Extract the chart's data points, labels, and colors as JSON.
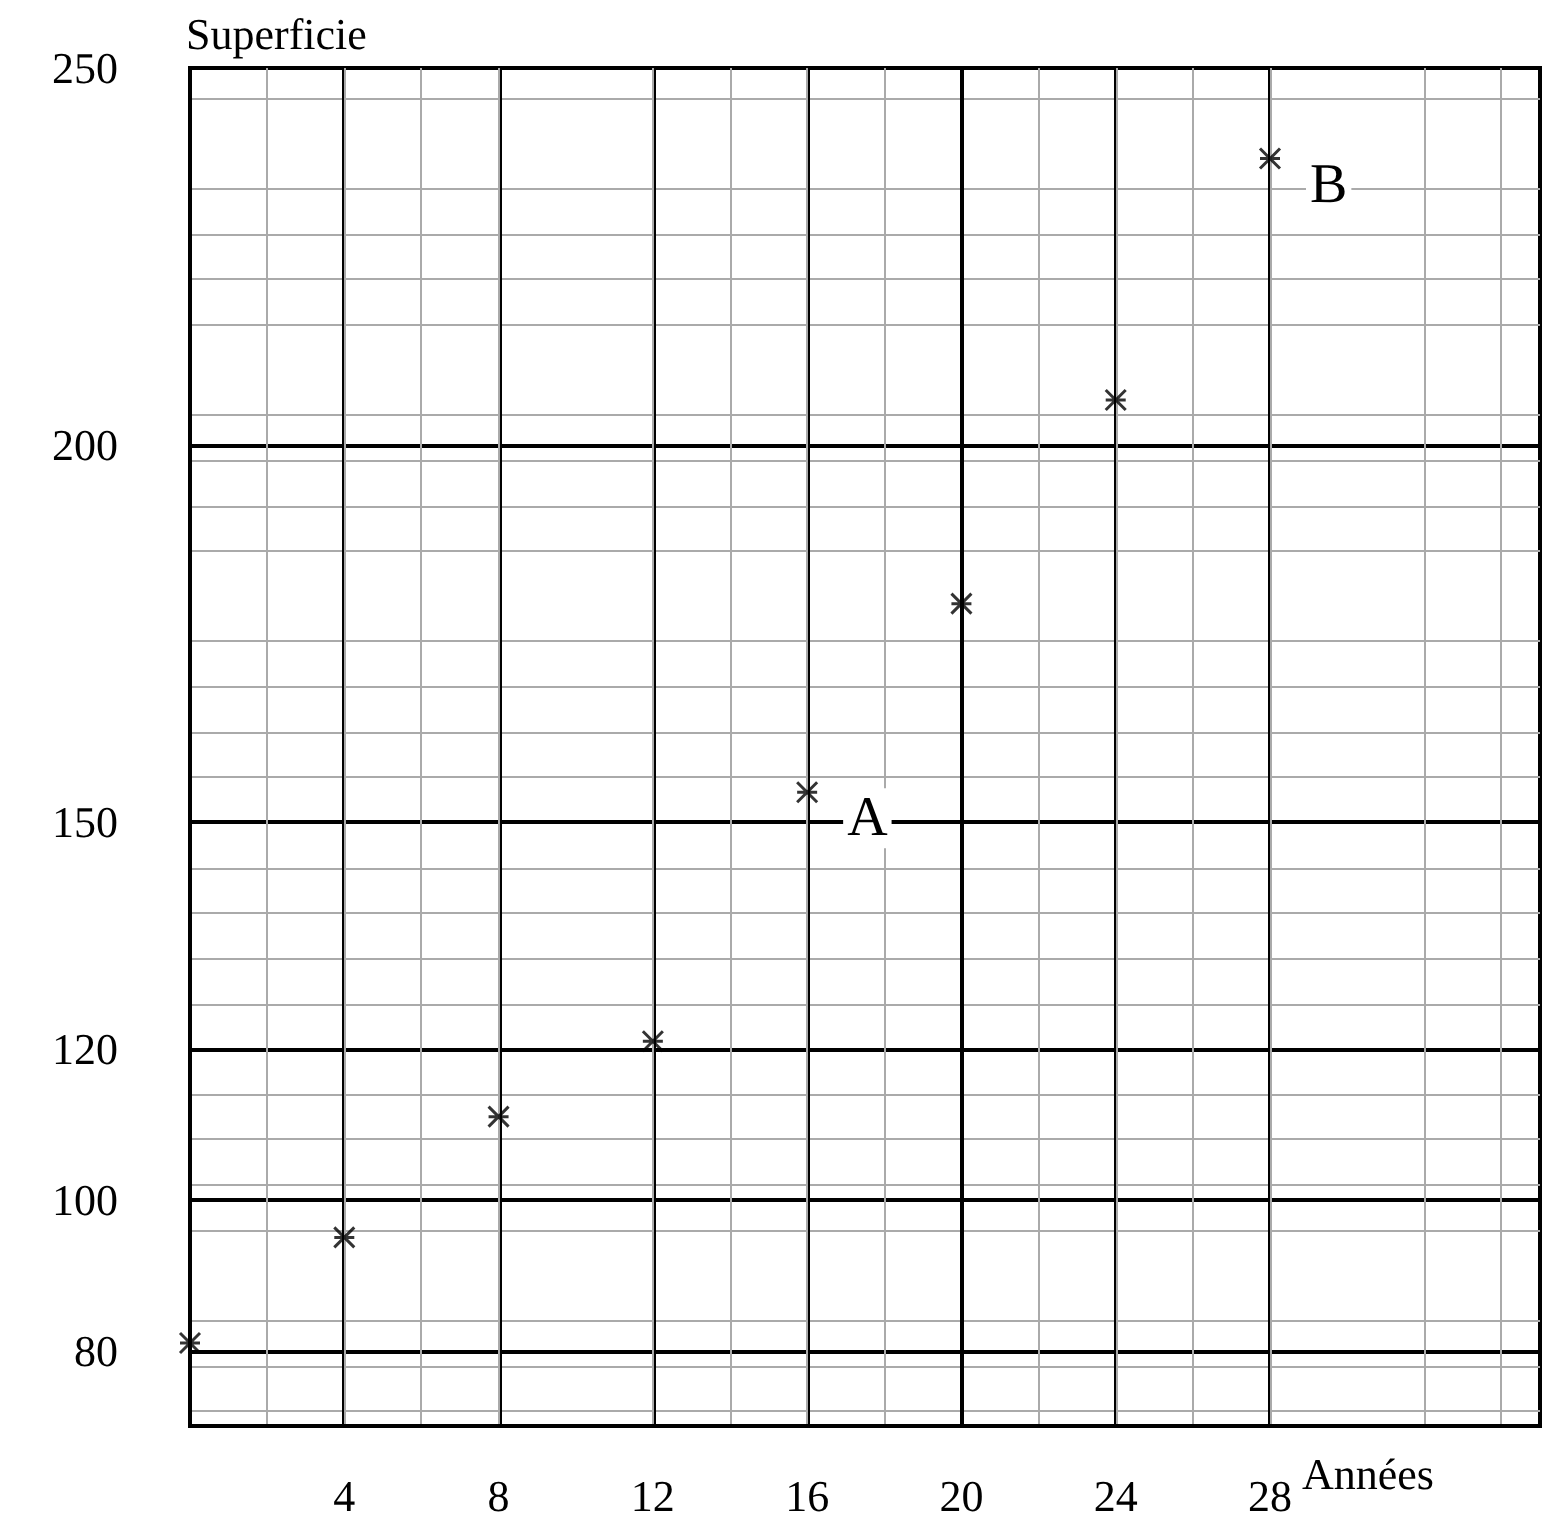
{
  "chart_data": {
    "type": "scatter",
    "xlabel": "Années",
    "ylabel": "Superficie",
    "x": [
      0,
      4,
      8,
      12,
      16,
      20,
      24,
      28
    ],
    "values": [
      81,
      95,
      111,
      121,
      154,
      179,
      206,
      238
    ],
    "color": "#000000",
    "marker": "cross",
    "xlim": [
      0,
      35
    ],
    "xticks": [
      4,
      8,
      12,
      16,
      20,
      24,
      28
    ],
    "ylim": [
      70,
      250
    ],
    "yticks": [
      80,
      100,
      120,
      150,
      200,
      250
    ],
    "grid": true,
    "annotations": [
      {
        "text": "A",
        "x": 16,
        "y": 154
      },
      {
        "text": "B",
        "x": 28,
        "y": 238
      }
    ]
  }
}
